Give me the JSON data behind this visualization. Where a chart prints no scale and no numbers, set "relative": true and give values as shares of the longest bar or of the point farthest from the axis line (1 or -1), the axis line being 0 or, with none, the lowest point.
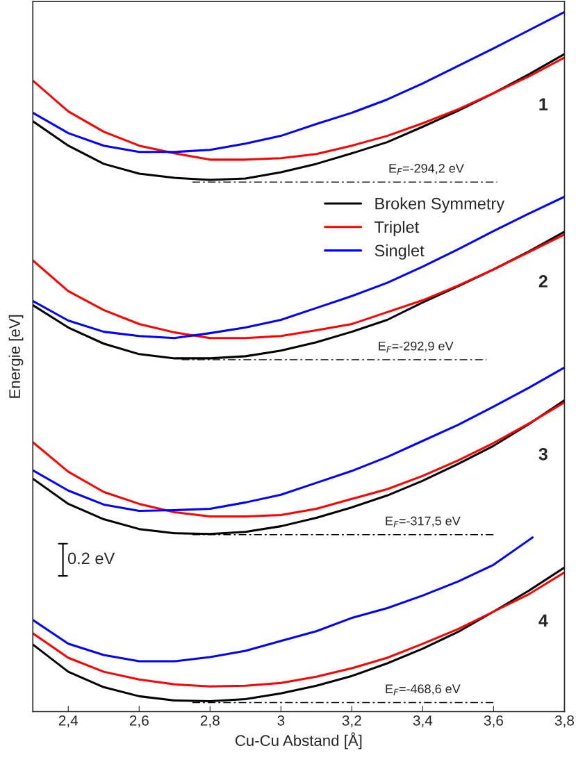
{
  "chart_data": {
    "type": "line",
    "relative": true,
    "xlabel": "Cu-Cu Abstand [Å]",
    "ylabel": "Energie [eV]",
    "x": [
      2.3,
      2.4,
      2.5,
      2.6,
      2.7,
      2.8,
      2.9,
      3.0,
      3.1,
      3.2,
      3.3,
      3.4,
      3.5,
      3.6,
      3.7,
      3.8
    ],
    "xlim": [
      2.3,
      3.8
    ],
    "xticks": [
      {
        "value": 2.4,
        "label": "2,4"
      },
      {
        "value": 2.6,
        "label": "2,6"
      },
      {
        "value": 2.8,
        "label": "2,8"
      },
      3,
      {
        "value": 3.2,
        "label": "3,2"
      },
      {
        "value": 3.4,
        "label": "3,4"
      },
      {
        "value": 3.6,
        "label": "3,6"
      },
      {
        "value": 3.8,
        "label": "3,8"
      }
    ],
    "tick_labels": "x",
    "grid": false,
    "legend": "top right",
    "marker": "none",
    "line_style": "solid",
    "series": [
      {
        "name": "Broken Symmetry",
        "color": "#000000",
        "values": [
          0.844,
          0.809,
          0.783,
          0.769,
          0.763,
          0.76,
          0.762,
          0.771,
          0.783,
          0.798,
          0.814,
          0.836,
          0.859,
          0.884,
          0.911,
          0.94
        ]
      },
      {
        "name": "Triplet",
        "color": "#ff0000",
        "values": [
          0.902,
          0.858,
          0.829,
          0.809,
          0.798,
          0.789,
          0.789,
          0.791,
          0.797,
          0.809,
          0.823,
          0.841,
          0.861,
          0.884,
          0.908,
          0.935
        ]
      },
      {
        "name": "Singlet",
        "color": "#0000ff",
        "values": [
          0.856,
          0.827,
          0.809,
          0.8,
          0.8,
          0.803,
          0.812,
          0.823,
          0.84,
          0.856,
          0.875,
          0.898,
          0.923,
          0.948,
          0.974,
          1.0
        ]
      },
      {
        "color": "#000000",
        "values": [
          0.581,
          0.549,
          0.526,
          0.511,
          0.505,
          0.505,
          0.508,
          0.516,
          0.528,
          0.543,
          0.56,
          0.585,
          0.608,
          0.632,
          0.658,
          0.686
        ]
      },
      {
        "color": "#ff0000",
        "values": [
          0.645,
          0.601,
          0.574,
          0.554,
          0.542,
          0.534,
          0.534,
          0.537,
          0.545,
          0.554,
          0.571,
          0.588,
          0.609,
          0.632,
          0.657,
          0.682
        ]
      },
      {
        "color": "#0000ff",
        "values": [
          0.587,
          0.559,
          0.543,
          0.537,
          0.534,
          0.541,
          0.549,
          0.56,
          0.577,
          0.594,
          0.613,
          0.636,
          0.661,
          0.687,
          0.712,
          0.736
        ]
      },
      {
        "color": "#000000",
        "values": [
          0.333,
          0.297,
          0.275,
          0.261,
          0.255,
          0.254,
          0.257,
          0.265,
          0.277,
          0.292,
          0.309,
          0.33,
          0.354,
          0.38,
          0.411,
          0.445
        ]
      },
      {
        "color": "#ff0000",
        "values": [
          0.385,
          0.343,
          0.314,
          0.297,
          0.285,
          0.279,
          0.279,
          0.281,
          0.29,
          0.304,
          0.318,
          0.337,
          0.359,
          0.384,
          0.412,
          0.442
        ]
      },
      {
        "color": "#0000ff",
        "values": [
          0.345,
          0.316,
          0.296,
          0.287,
          0.288,
          0.29,
          0.299,
          0.31,
          0.327,
          0.344,
          0.364,
          0.387,
          0.41,
          0.436,
          0.463,
          0.492
        ]
      },
      {
        "color": "#000000",
        "values": [
          0.096,
          0.057,
          0.035,
          0.022,
          0.016,
          0.015,
          0.018,
          0.026,
          0.037,
          0.051,
          0.069,
          0.09,
          0.114,
          0.143,
          0.173,
          0.206
        ]
      },
      {
        "color": "#ff0000",
        "values": [
          0.112,
          0.077,
          0.057,
          0.046,
          0.039,
          0.036,
          0.037,
          0.041,
          0.05,
          0.062,
          0.077,
          0.097,
          0.118,
          0.143,
          0.168,
          0.199
        ]
      },
      {
        "color": "#0000ff",
        "x": [
          2.3,
          2.4,
          2.5,
          2.6,
          2.7,
          2.8,
          2.9,
          3.0,
          3.1,
          3.2,
          3.3,
          3.4,
          3.5,
          3.6,
          3.71
        ],
        "values": [
          0.131,
          0.097,
          0.081,
          0.072,
          0.072,
          0.078,
          0.087,
          0.101,
          0.115,
          0.134,
          0.148,
          0.166,
          0.186,
          0.21,
          0.249
        ]
      },
      {
        "color": "#000000",
        "line_style": "dashed",
        "x": [
          2.75,
          3.61
        ],
        "values": [
          0.757,
          0.757
        ]
      },
      {
        "color": "#000000",
        "line_style": "dashed",
        "x": [
          2.72,
          3.58
        ],
        "values": [
          0.503,
          0.503
        ]
      },
      {
        "color": "#000000",
        "line_style": "dashed",
        "x": [
          2.75,
          3.6
        ],
        "values": [
          0.253,
          0.253
        ]
      },
      {
        "color": "#000000",
        "line_style": "dashed",
        "x": [
          2.75,
          3.6
        ],
        "values": [
          0.013,
          0.013
        ]
      }
    ],
    "annotations": [
      "1",
      "2",
      "3",
      "4",
      "E$_{F}$=-294,2 eV",
      "E$_{F}$=-292,9 eV",
      "E$_{F}$=-317,5 eV",
      "E$_{F}$=-468,6 eV",
      "0.2 eV"
    ]
  }
}
